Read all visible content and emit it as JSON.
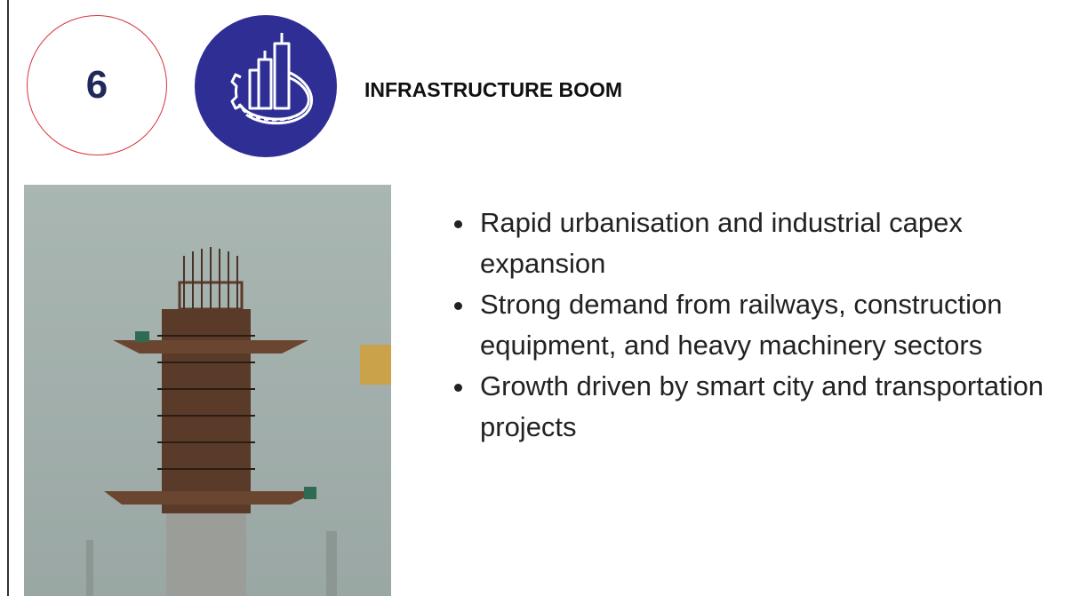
{
  "header": {
    "number": "6",
    "title": "INFRASTRUCTURE BOOM"
  },
  "bullets": [
    "Rapid urbanisation and industrial capex expansion",
    "Strong demand from railways, construction equipment, and heavy machinery sectors",
    "Growth driven by smart city and transportation projects"
  ]
}
